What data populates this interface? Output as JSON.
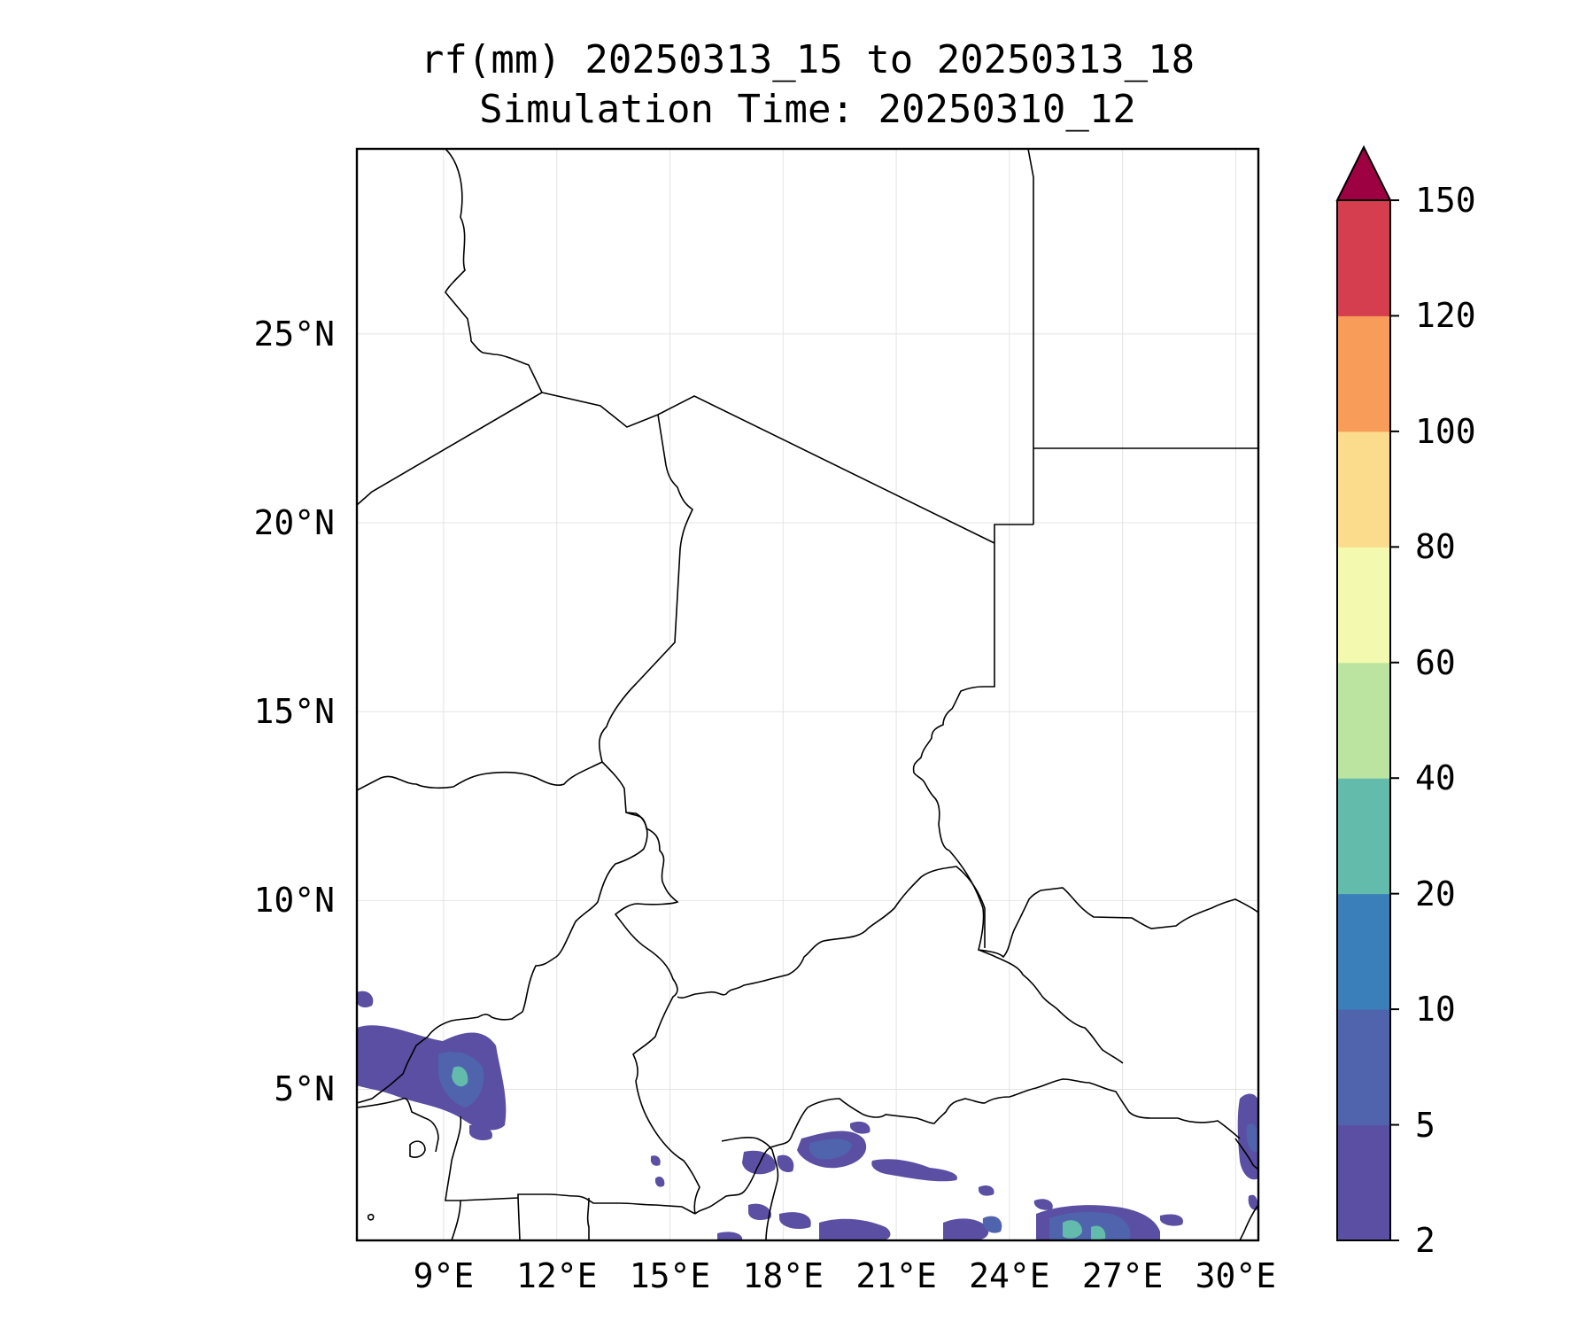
{
  "map": {
    "title_line1": "rf(mm) 20250313_15 to 20250313_18",
    "title_line2": "Simulation Time: 20250310_12",
    "lat_ticks": [
      {
        "label": "25°N",
        "value": 25
      },
      {
        "label": "20°N",
        "value": 20
      },
      {
        "label": "15°N",
        "value": 15
      },
      {
        "label": "10°N",
        "value": 10
      },
      {
        "label": "5°N",
        "value": 5
      }
    ],
    "lon_ticks": [
      {
        "label": "9°E",
        "value": 9
      },
      {
        "label": "12°E",
        "value": 12
      },
      {
        "label": "15°E",
        "value": 15
      },
      {
        "label": "18°E",
        "value": 18
      },
      {
        "label": "21°E",
        "value": 21
      },
      {
        "label": "24°E",
        "value": 24
      },
      {
        "label": "27°E",
        "value": 27
      },
      {
        "label": "30°E",
        "value": 30
      }
    ],
    "extent": {
      "lon_min": 6.7,
      "lon_max": 30.6,
      "lat_min": 1.0,
      "lat_max": 29.9
    },
    "grid": true,
    "colorbar": {
      "labels": [
        "2",
        "5",
        "10",
        "20",
        "40",
        "60",
        "80",
        "100",
        "120",
        "150"
      ],
      "colors": [
        "#5b4fa3",
        "#4f64ad",
        "#3a7fba",
        "#63bcab",
        "#bce4a1",
        "#f3f9ae",
        "#fbdc8d",
        "#f89c59",
        "#d53e4f"
      ],
      "extend_color": "#9e0142",
      "extend": "max"
    }
  }
}
